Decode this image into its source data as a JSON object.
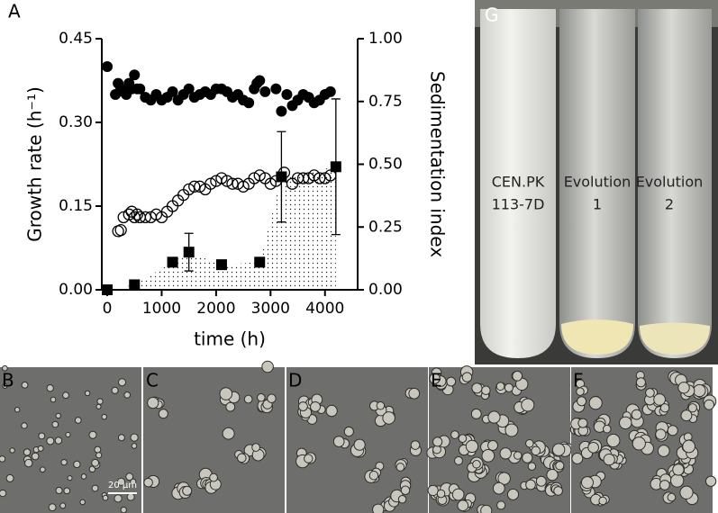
{
  "chart_data": {
    "type": "scatter",
    "xlabel": "time (h)",
    "ylabel": "Growth rate (h⁻¹)",
    "y2label": "Sedimentation index",
    "xlim": [
      -100,
      4600
    ],
    "xticks": [
      0,
      1000,
      2000,
      3000,
      4000
    ],
    "ylim": [
      0,
      0.45
    ],
    "yticks": [
      {
        "value": 0,
        "label": "0.00"
      },
      {
        "value": 0.15,
        "label": "0.15"
      },
      {
        "value": 0.3,
        "label": "0.30"
      },
      {
        "value": 0.45,
        "label": "0.45"
      }
    ],
    "y2lim": [
      0,
      1
    ],
    "y2ticks": [
      {
        "value": 0,
        "label": "0.00"
      },
      {
        "value": 0.25,
        "label": "0.25"
      },
      {
        "value": 0.5,
        "label": "0.50"
      },
      {
        "value": 0.75,
        "label": "0.75"
      },
      {
        "value": 1,
        "label": "1.00"
      }
    ],
    "series": [
      {
        "marker": "filled-circle",
        "color": "#000000",
        "axis": "y",
        "x": [
          0,
          150,
          200,
          250,
          300,
          350,
          400,
          450,
          500,
          550,
          600,
          700,
          800,
          900,
          1000,
          1100,
          1200,
          1300,
          1400,
          1500,
          1600,
          1700,
          1800,
          1900,
          2000,
          2100,
          2200,
          2300,
          2400,
          2500,
          2600,
          2700,
          2750,
          2800,
          2900,
          3100,
          3200,
          3300,
          3400,
          3500,
          3600,
          3700,
          3800,
          3900,
          4000,
          4100
        ],
        "values": [
          0.4,
          0.35,
          0.37,
          0.36,
          0.355,
          0.35,
          0.37,
          0.36,
          0.385,
          0.36,
          0.36,
          0.345,
          0.34,
          0.35,
          0.34,
          0.345,
          0.355,
          0.34,
          0.35,
          0.36,
          0.345,
          0.35,
          0.355,
          0.35,
          0.36,
          0.36,
          0.355,
          0.345,
          0.35,
          0.34,
          0.335,
          0.36,
          0.37,
          0.375,
          0.355,
          0.36,
          0.32,
          0.35,
          0.33,
          0.34,
          0.35,
          0.345,
          0.335,
          0.34,
          0.35,
          0.355
        ]
      },
      {
        "marker": "open-circle",
        "color": "#000000",
        "axis": "y",
        "x": [
          200,
          250,
          300,
          400,
          450,
          500,
          550,
          600,
          700,
          800,
          900,
          1000,
          1100,
          1200,
          1300,
          1400,
          1500,
          1600,
          1700,
          1800,
          1900,
          2000,
          2100,
          2200,
          2300,
          2400,
          2500,
          2600,
          2700,
          2800,
          2900,
          3000,
          3100,
          3250,
          3400,
          3500,
          3600,
          3700,
          3800,
          3900,
          4000,
          4100
        ],
        "values": [
          0.105,
          0.107,
          0.13,
          0.135,
          0.14,
          0.13,
          0.135,
          0.13,
          0.13,
          0.13,
          0.135,
          0.13,
          0.14,
          0.15,
          0.16,
          0.17,
          0.18,
          0.185,
          0.185,
          0.18,
          0.19,
          0.195,
          0.2,
          0.195,
          0.19,
          0.19,
          0.185,
          0.19,
          0.2,
          0.205,
          0.2,
          0.19,
          0.195,
          0.21,
          0.19,
          0.2,
          0.2,
          0.2,
          0.205,
          0.2,
          0.2,
          0.205
        ]
      },
      {
        "marker": "square",
        "color": "#000000",
        "axis": "y2",
        "area": true,
        "x": [
          0,
          500,
          1200,
          1500,
          2100,
          2800,
          3200,
          4200
        ],
        "values": [
          0,
          0.02,
          0.11,
          0.15,
          0.1,
          0.11,
          0.45,
          0.49
        ],
        "errors": [
          null,
          null,
          null,
          0.075,
          null,
          null,
          0.18,
          0.27
        ]
      }
    ]
  },
  "panel_labels": [
    "A",
    "B",
    "C",
    "D",
    "E",
    "F",
    "G"
  ],
  "scale_bar": "20 µm",
  "tubes": [
    {
      "line1": "CEN.PK",
      "line2": "113-7D"
    },
    {
      "line1": "Evolution",
      "line2": "1"
    },
    {
      "line1": "Evolution",
      "line2": "2"
    }
  ]
}
